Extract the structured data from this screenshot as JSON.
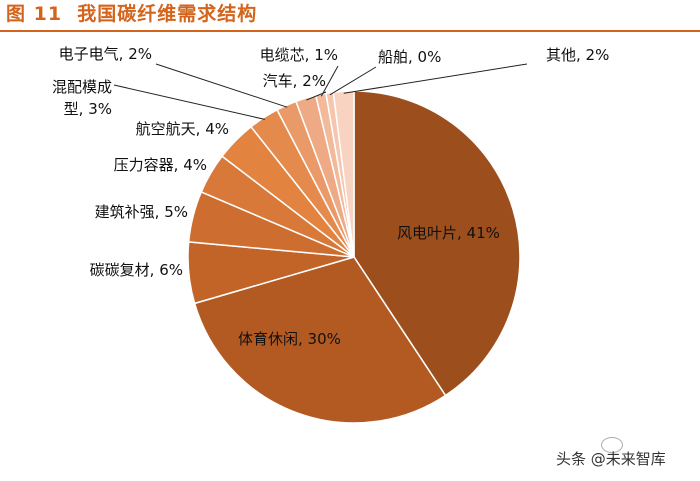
{
  "figure_label": "图 11",
  "figure_title": "我国碳纤维需求结构",
  "watermark": "头条 @未来智库",
  "colors": {
    "accent": "#d4641b",
    "slices": [
      "#9c4f1d",
      "#b35a23",
      "#c26427",
      "#cd6e30",
      "#d8793a",
      "#e2833f",
      "#e58a4d",
      "#ea9a68",
      "#eeaa85",
      "#f2b99b",
      "#f5c6ad",
      "#f8d3c1"
    ]
  },
  "chart_data": {
    "type": "pie",
    "title": "我国碳纤维需求结构",
    "slices": [
      {
        "label": "风电叶片",
        "value": 41,
        "display": "风电叶片, 41%"
      },
      {
        "label": "体育休闲",
        "value": 30,
        "display": "体育休闲, 30%"
      },
      {
        "label": "碳碳复材",
        "value": 6,
        "display": "碳碳复材, 6%"
      },
      {
        "label": "建筑补强",
        "value": 5,
        "display": "建筑补强, 5%"
      },
      {
        "label": "压力容器",
        "value": 4,
        "display": "压力容器, 4%"
      },
      {
        "label": "航空航天",
        "value": 4,
        "display": "航空航天, 4%"
      },
      {
        "label": "混配模成型",
        "value": 3,
        "display": "混配模成型, 3%",
        "lines": [
          "混配模成",
          "型, 3%"
        ]
      },
      {
        "label": "电子电气",
        "value": 2,
        "display": "电子电气, 2%"
      },
      {
        "label": "汽车",
        "value": 2,
        "display": "汽车, 2%"
      },
      {
        "label": "电缆芯",
        "value": 1,
        "display": "电缆芯, 1%"
      },
      {
        "label": "船舶",
        "value": 0,
        "display": "船舶, 0%"
      },
      {
        "label": "其他",
        "value": 2,
        "display": "其他, 2%"
      }
    ]
  }
}
